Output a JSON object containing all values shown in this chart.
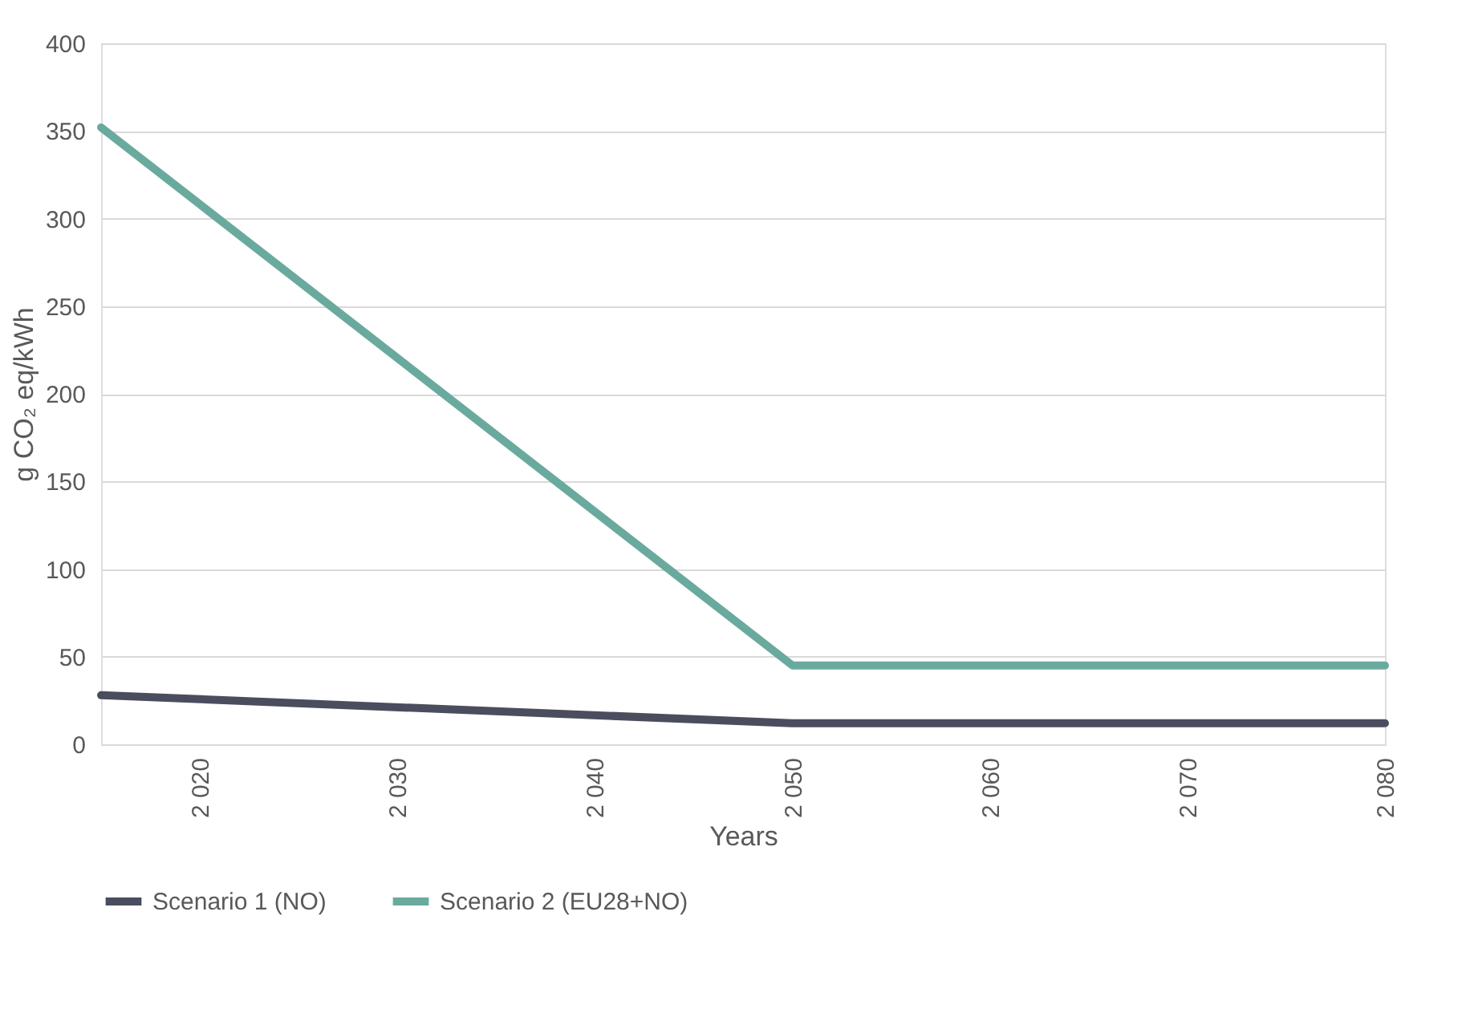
{
  "chart_data": {
    "type": "line",
    "xlabel": "Years",
    "ylabel": "g CO₂ eq/kWh",
    "xlim": [
      2015,
      2080
    ],
    "ylim": [
      0,
      400
    ],
    "xticks": [
      {
        "value": 2020,
        "label": "2 020"
      },
      {
        "value": 2030,
        "label": "2 030"
      },
      {
        "value": 2040,
        "label": "2 040"
      },
      {
        "value": 2050,
        "label": "2 050"
      },
      {
        "value": 2060,
        "label": "2 060"
      },
      {
        "value": 2070,
        "label": "2 070"
      },
      {
        "value": 2080,
        "label": "2 080"
      }
    ],
    "yticks": [
      0,
      50,
      100,
      150,
      200,
      250,
      300,
      350,
      400
    ],
    "grid": "y",
    "legend": "bottom",
    "series": [
      {
        "name": "Scenario 1 (NO)",
        "color": "#4a4d5e",
        "x": [
          2015,
          2050,
          2080
        ],
        "values": [
          28,
          12,
          12
        ]
      },
      {
        "name": "Scenario 2 (EU28+NO)",
        "color": "#6aaa9e",
        "x": [
          2015,
          2050,
          2080
        ],
        "values": [
          352,
          45,
          45
        ]
      }
    ]
  }
}
